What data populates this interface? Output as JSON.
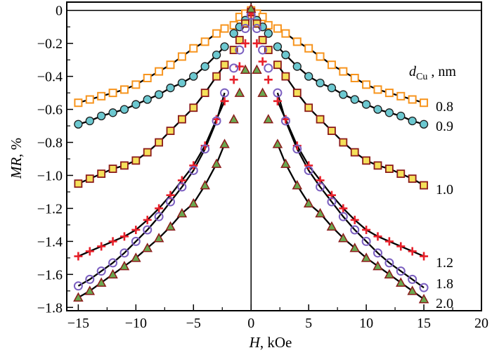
{
  "chart_data": {
    "type": "scatter",
    "title": "",
    "xlabel": {
      "italic": "H",
      "rest": ", kOe"
    },
    "ylabel": {
      "italic": "MR",
      "rest": ", %"
    },
    "xlim": [
      -16,
      20
    ],
    "ylim": [
      -1.82,
      0.05
    ],
    "xticks": [
      -15,
      -10,
      -5,
      0,
      5,
      10,
      15,
      20
    ],
    "xtick_labels": [
      "−15",
      "−10",
      "−5",
      "0",
      "5",
      "10",
      "15",
      "20"
    ],
    "yticks": [
      0,
      -0.2,
      -0.4,
      -0.6,
      -0.8,
      -1.0,
      -1.2,
      -1.4,
      -1.6,
      -1.8
    ],
    "ytick_labels": [
      "0",
      "−0.2",
      "−0.4",
      "−0.6",
      "−0.8",
      "−1.0",
      "−1.2",
      "−1.4",
      "−1.6",
      "−1.8"
    ],
    "grid": false,
    "legend_title": {
      "main": "d",
      "sub": "Cu",
      "rest": " , nm"
    },
    "x": [
      -15,
      -14,
      -13,
      -12,
      -11,
      -10,
      -9,
      -8,
      -7,
      -6,
      -5,
      -4,
      -3,
      -2.3,
      -1.5,
      -1,
      -0.5,
      0,
      0.5,
      1,
      1.5,
      2.3,
      3,
      4,
      5,
      6,
      7,
      8,
      9,
      10,
      11,
      12,
      13,
      14,
      15
    ],
    "series": [
      {
        "name": "0.8",
        "marker": "open-square",
        "color": "#f7941d",
        "values": [
          -0.56,
          -0.54,
          -0.52,
          -0.5,
          -0.48,
          -0.45,
          -0.41,
          -0.37,
          -0.33,
          -0.28,
          -0.23,
          -0.19,
          -0.14,
          -0.11,
          -0.09,
          -0.04,
          -0.02,
          0,
          -0.02,
          -0.04,
          -0.09,
          -0.11,
          -0.14,
          -0.19,
          -0.23,
          -0.28,
          -0.33,
          -0.37,
          -0.41,
          -0.45,
          -0.48,
          -0.5,
          -0.52,
          -0.54,
          -0.56
        ]
      },
      {
        "name": "0.9",
        "marker": "filled-circle",
        "color": "#6cc8d0",
        "values": [
          -0.69,
          -0.67,
          -0.64,
          -0.62,
          -0.6,
          -0.57,
          -0.54,
          -0.51,
          -0.47,
          -0.44,
          -0.4,
          -0.34,
          -0.27,
          -0.22,
          -0.14,
          -0.1,
          -0.06,
          -0.01,
          -0.06,
          -0.1,
          -0.14,
          -0.22,
          -0.27,
          -0.34,
          -0.4,
          -0.44,
          -0.47,
          -0.51,
          -0.54,
          -0.57,
          -0.6,
          -0.62,
          -0.64,
          -0.67,
          -0.69
        ]
      },
      {
        "name": "1.0",
        "marker": "filled-square",
        "color": "#f5e15a",
        "values": [
          -1.05,
          -1.02,
          -0.99,
          -0.96,
          -0.94,
          -0.91,
          -0.86,
          -0.8,
          -0.73,
          -0.66,
          -0.59,
          -0.5,
          -0.4,
          -0.33,
          -0.24,
          -0.18,
          -0.08,
          -0.01,
          -0.08,
          -0.18,
          -0.24,
          -0.33,
          -0.4,
          -0.5,
          -0.59,
          -0.66,
          -0.73,
          -0.8,
          -0.86,
          -0.91,
          -0.94,
          -0.96,
          -0.99,
          -1.02,
          -1.06
        ]
      },
      {
        "name": "1.2",
        "marker": "plus",
        "color": "#e8202a",
        "values": [
          -1.49,
          -1.46,
          -1.43,
          -1.4,
          -1.37,
          -1.33,
          -1.27,
          -1.2,
          -1.12,
          -1.03,
          -0.94,
          -0.82,
          -0.66,
          -0.55,
          -0.42,
          -0.34,
          -0.2,
          -0.02,
          -0.2,
          -0.31,
          -0.42,
          -0.55,
          -0.66,
          -0.82,
          -0.94,
          -1.03,
          -1.12,
          -1.2,
          -1.27,
          -1.33,
          -1.37,
          -1.4,
          -1.43,
          -1.46,
          -1.49
        ]
      },
      {
        "name": "1.8",
        "marker": "open-circle",
        "color": "#7b5fc0",
        "values": [
          -1.67,
          -1.63,
          -1.58,
          -1.53,
          -1.47,
          -1.4,
          -1.33,
          -1.25,
          -1.16,
          -1.07,
          -0.97,
          -0.84,
          -0.67,
          -0.5,
          -0.35,
          -0.24,
          -0.11,
          -0.03,
          -0.11,
          -0.24,
          -0.35,
          -0.5,
          -0.67,
          -0.84,
          -0.97,
          -1.07,
          -1.16,
          -1.25,
          -1.33,
          -1.4,
          -1.47,
          -1.53,
          -1.58,
          -1.63,
          -1.68
        ]
      },
      {
        "name": "2.0",
        "marker": "triangle",
        "color": "#6aa84f",
        "values": [
          -1.74,
          -1.7,
          -1.65,
          -1.6,
          -1.55,
          -1.5,
          -1.44,
          -1.38,
          -1.31,
          -1.23,
          -1.17,
          -1.06,
          -0.93,
          -0.81,
          -0.66,
          -0.5,
          -0.36,
          0.01,
          -0.36,
          -0.5,
          -0.66,
          -0.81,
          -0.93,
          -1.06,
          -1.17,
          -1.23,
          -1.31,
          -1.38,
          -1.44,
          -1.5,
          -1.55,
          -1.6,
          -1.65,
          -1.7,
          -1.75
        ]
      }
    ],
    "fit_lines": {
      "color": "#000000",
      "h_range": [
        2.3,
        15
      ]
    },
    "marker_edge_color": "#8b1a1a"
  }
}
